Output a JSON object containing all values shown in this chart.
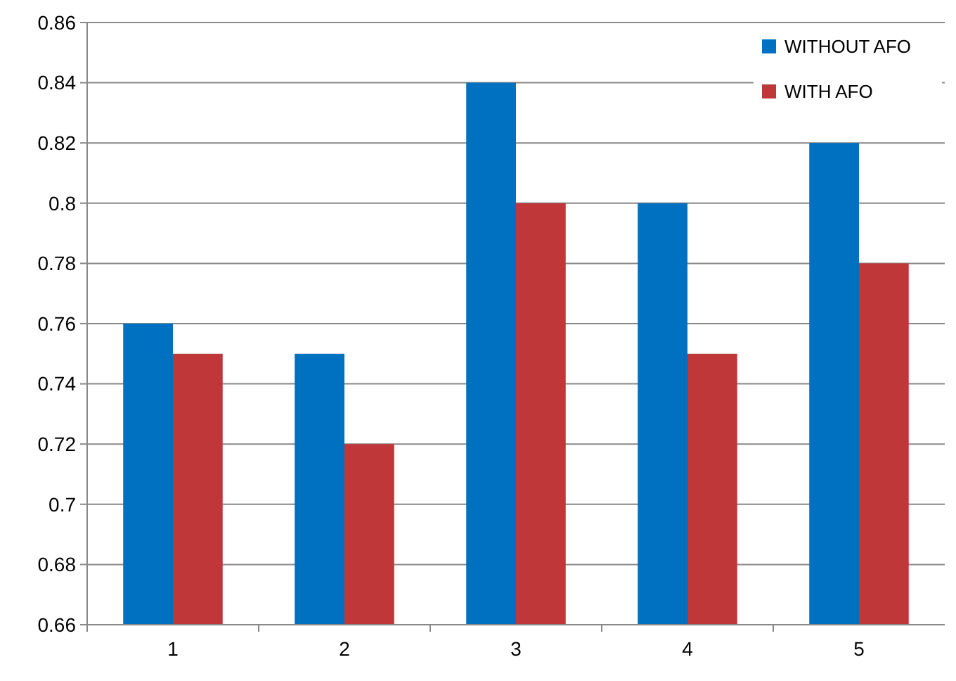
{
  "chart_data": {
    "type": "bar",
    "categories": [
      "1",
      "2",
      "3",
      "4",
      "5"
    ],
    "series": [
      {
        "name": "WITHOUT AFO",
        "color": "#0070c0",
        "values": [
          0.76,
          0.75,
          0.84,
          0.8,
          0.82
        ]
      },
      {
        "name": "WITH AFO",
        "color": "#c0373a",
        "values": [
          0.75,
          0.72,
          0.8,
          0.75,
          0.78
        ]
      }
    ],
    "ylim": [
      0.66,
      0.86
    ],
    "yticks": [
      0.66,
      0.68,
      0.7,
      0.72,
      0.74,
      0.76,
      0.78,
      0.8,
      0.82,
      0.84,
      0.86
    ],
    "grid": "y",
    "legend": "top right"
  }
}
